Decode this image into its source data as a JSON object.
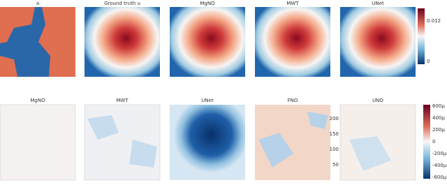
{
  "top_row": {
    "panels": [
      "a",
      "Ground truth u",
      "MgNO",
      "MWT",
      "UNet"
    ],
    "colorbar_ticks": [
      "0.012",
      "0"
    ]
  },
  "bottom_row": {
    "panels": [
      "MgNO",
      "MWT",
      "UNet",
      "FNO",
      "UNO"
    ],
    "axis_ticks": [
      "200",
      "150",
      "100",
      "50"
    ],
    "colorbar_ticks": [
      "600μ",
      "400μ",
      "200μ",
      "0",
      "-200μ",
      "-400μ",
      "-600μ"
    ]
  }
}
